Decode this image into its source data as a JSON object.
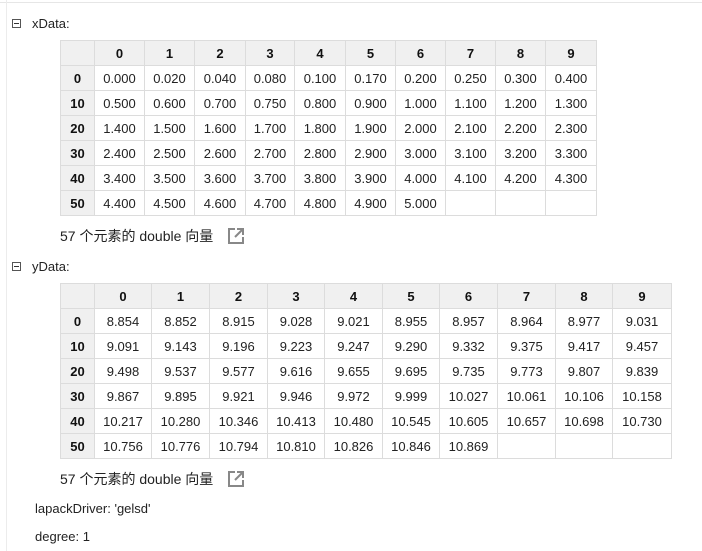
{
  "xData": {
    "label": "xData:",
    "columns": [
      "0",
      "1",
      "2",
      "3",
      "4",
      "5",
      "6",
      "7",
      "8",
      "9"
    ],
    "row_headers": [
      "0",
      "10",
      "20",
      "30",
      "40",
      "50"
    ],
    "rows": [
      [
        "0.000",
        "0.020",
        "0.040",
        "0.080",
        "0.100",
        "0.170",
        "0.200",
        "0.250",
        "0.300",
        "0.400"
      ],
      [
        "0.500",
        "0.600",
        "0.700",
        "0.750",
        "0.800",
        "0.900",
        "1.000",
        "1.100",
        "1.200",
        "1.300"
      ],
      [
        "1.400",
        "1.500",
        "1.600",
        "1.700",
        "1.800",
        "1.900",
        "2.000",
        "2.100",
        "2.200",
        "2.300"
      ],
      [
        "2.400",
        "2.500",
        "2.600",
        "2.700",
        "2.800",
        "2.900",
        "3.000",
        "3.100",
        "3.200",
        "3.300"
      ],
      [
        "3.400",
        "3.500",
        "3.600",
        "3.700",
        "3.800",
        "3.900",
        "4.000",
        "4.100",
        "4.200",
        "4.300"
      ],
      [
        "4.400",
        "4.500",
        "4.600",
        "4.700",
        "4.800",
        "4.900",
        "5.000",
        "",
        "",
        ""
      ]
    ],
    "summary": "57 个元素的 double 向量"
  },
  "yData": {
    "label": "yData:",
    "columns": [
      "0",
      "1",
      "2",
      "3",
      "4",
      "5",
      "6",
      "7",
      "8",
      "9"
    ],
    "row_headers": [
      "0",
      "10",
      "20",
      "30",
      "40",
      "50"
    ],
    "rows": [
      [
        "8.854",
        "8.852",
        "8.915",
        "9.028",
        "9.021",
        "8.955",
        "8.957",
        "8.964",
        "8.977",
        "9.031"
      ],
      [
        "9.091",
        "9.143",
        "9.196",
        "9.223",
        "9.247",
        "9.290",
        "9.332",
        "9.375",
        "9.417",
        "9.457"
      ],
      [
        "9.498",
        "9.537",
        "9.577",
        "9.616",
        "9.655",
        "9.695",
        "9.735",
        "9.773",
        "9.807",
        "9.839"
      ],
      [
        "9.867",
        "9.895",
        "9.921",
        "9.946",
        "9.972",
        "9.999",
        "10.027",
        "10.061",
        "10.106",
        "10.158"
      ],
      [
        "10.217",
        "10.280",
        "10.346",
        "10.413",
        "10.480",
        "10.545",
        "10.605",
        "10.657",
        "10.698",
        "10.730"
      ],
      [
        "10.756",
        "10.776",
        "10.794",
        "10.810",
        "10.826",
        "10.846",
        "10.869",
        "",
        "",
        ""
      ]
    ],
    "summary": "57 个元素的 double 向量"
  },
  "props": {
    "lapack": "lapackDriver: 'gelsd'",
    "degree": "degree: 1"
  },
  "icons": {
    "collapse": "collapse-toggle-icon",
    "open": "open-in-editor-icon"
  }
}
